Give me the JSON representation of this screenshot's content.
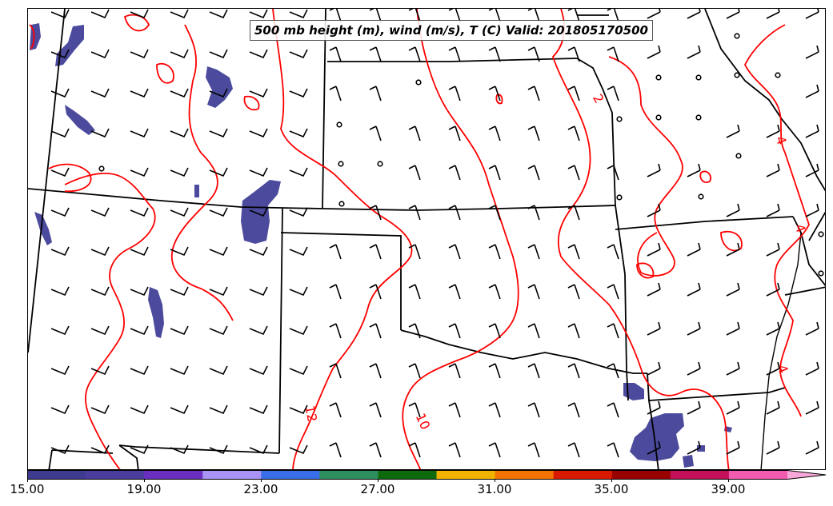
{
  "title": "500 mb height (m), wind (m/s), T (C) Valid: 201805170500",
  "colorbar": {
    "tick_labels": [
      "15.00",
      "19.00",
      "23.00",
      "27.00",
      "31.00",
      "35.00",
      "39.00"
    ],
    "colors": [
      "#3d3a8f",
      "#4b3d9e",
      "#6a2fc0",
      "#a993f5",
      "#3a6ee8",
      "#2e8f5e",
      "#0d6b0d",
      "#f0b400",
      "#f57200",
      "#d91a00",
      "#990000",
      "#c4105a",
      "#f25bb0",
      "#f7a8d8"
    ]
  },
  "contour_labels": [
    "12",
    "10",
    "2",
    "4",
    "4",
    "4"
  ],
  "colors": {
    "temperature_contour": "#ff0000",
    "wind_speed_fill": "#4b4a9c",
    "boundaries": "#000000"
  }
}
